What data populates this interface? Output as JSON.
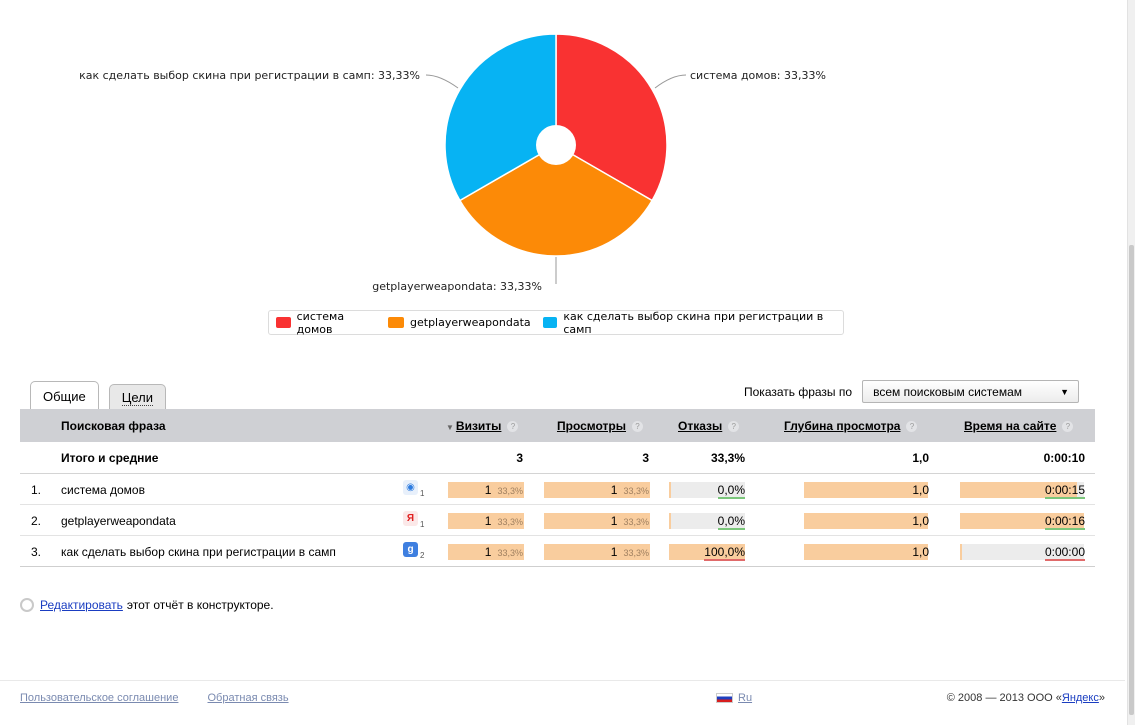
{
  "chart_data": {
    "type": "pie",
    "style": "donut",
    "slices": [
      {
        "name": "система домов",
        "value": 33.33,
        "color": "#f93232",
        "label": "система домов: 33,33%"
      },
      {
        "name": "getplayerweapondata",
        "value": 33.33,
        "color": "#fc8a07",
        "label": "getplayerweapondata: 33,33%"
      },
      {
        "name": "как сделать выбор скина при регистрации в самп",
        "value": 33.33,
        "color": "#07b3f3",
        "label": "как сделать выбор скина при регистрации в самп: 33,33%"
      }
    ],
    "legend_position": "bottom"
  },
  "legend": [
    {
      "label": "система домов",
      "color": "#f93232"
    },
    {
      "label": "getplayerweapondata",
      "color": "#fc8a07"
    },
    {
      "label": "как сделать выбор скина при регистрации в самп",
      "color": "#07b3f3"
    }
  ],
  "tabs": [
    {
      "label": "Общие",
      "active": true
    },
    {
      "label": "Цели",
      "active": false
    }
  ],
  "filter": {
    "label": "Показать фразы по",
    "selected": "всем поисковым системам"
  },
  "table": {
    "headers": {
      "phrase": "Поисковая фраза",
      "visits": "Визиты",
      "views": "Просмотры",
      "bounces": "Отказы",
      "depth": "Глубина просмотра",
      "time": "Время на сайте",
      "help": "?"
    },
    "totals": {
      "label": "Итого и средние",
      "visits": "3",
      "views": "3",
      "bounces": "33,3%",
      "depth": "1,0",
      "time": "0:00:10"
    },
    "rows": [
      {
        "index": "1.",
        "phrase": "система домов",
        "engine_icon": "rambler-icon",
        "engine_count": "1",
        "visits": "1",
        "visits_pct": "33,3%",
        "views": "1",
        "views_pct": "33,3%",
        "bounces": "0,0%",
        "bounce_fraction": 0.0,
        "depth": "1,0",
        "time": "0:00:15",
        "time_fraction": 0.94
      },
      {
        "index": "2.",
        "phrase": "getplayerweapondata",
        "engine_icon": "yandex-icon",
        "engine_count": "1",
        "visits": "1",
        "visits_pct": "33,3%",
        "views": "1",
        "views_pct": "33,3%",
        "bounces": "0,0%",
        "bounce_fraction": 0.0,
        "depth": "1,0",
        "time": "0:00:16",
        "time_fraction": 1.0
      },
      {
        "index": "3.",
        "phrase": "как сделать выбор скина при регистрации в самп",
        "engine_icon": "google-icon",
        "engine_count": "2",
        "visits": "1",
        "visits_pct": "33,3%",
        "views": "1",
        "views_pct": "33,3%",
        "bounces": "100,0%",
        "bounce_fraction": 1.0,
        "depth": "1,0",
        "time": "0:00:00",
        "time_fraction": 0.0
      }
    ]
  },
  "edit": {
    "link": "Редактировать",
    "rest": "этот отчёт в конструкторе."
  },
  "footer": {
    "agreement": "Пользовательское соглашение",
    "feedback": "Обратная связь",
    "lang": "Ru",
    "copyright": "© 2008 — 2013 ООО «",
    "company": "Яндекс",
    "copyright_end": "»"
  }
}
